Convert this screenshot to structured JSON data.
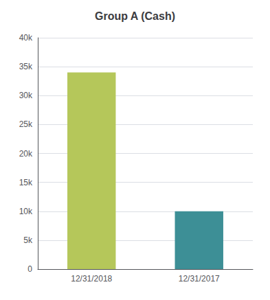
{
  "chart_data": {
    "type": "bar",
    "title": "Group A (Cash)",
    "categories": [
      "12/31/2018",
      "12/31/2017"
    ],
    "values": [
      34000,
      10000
    ],
    "colors": [
      "#b5c75a",
      "#3d8f96"
    ],
    "ylim": [
      0,
      40000
    ],
    "yticks": [
      0,
      {
        "value": 5000,
        "label": "5k"
      },
      {
        "value": 10000,
        "label": "10k"
      },
      {
        "value": 15000,
        "label": "15k"
      },
      {
        "value": 20000,
        "label": "20k"
      },
      {
        "value": 25000,
        "label": "25k"
      },
      {
        "value": 30000,
        "label": "30k"
      },
      {
        "value": 35000,
        "label": "35k"
      },
      {
        "value": 40000,
        "label": "40k"
      }
    ],
    "grid": true
  }
}
